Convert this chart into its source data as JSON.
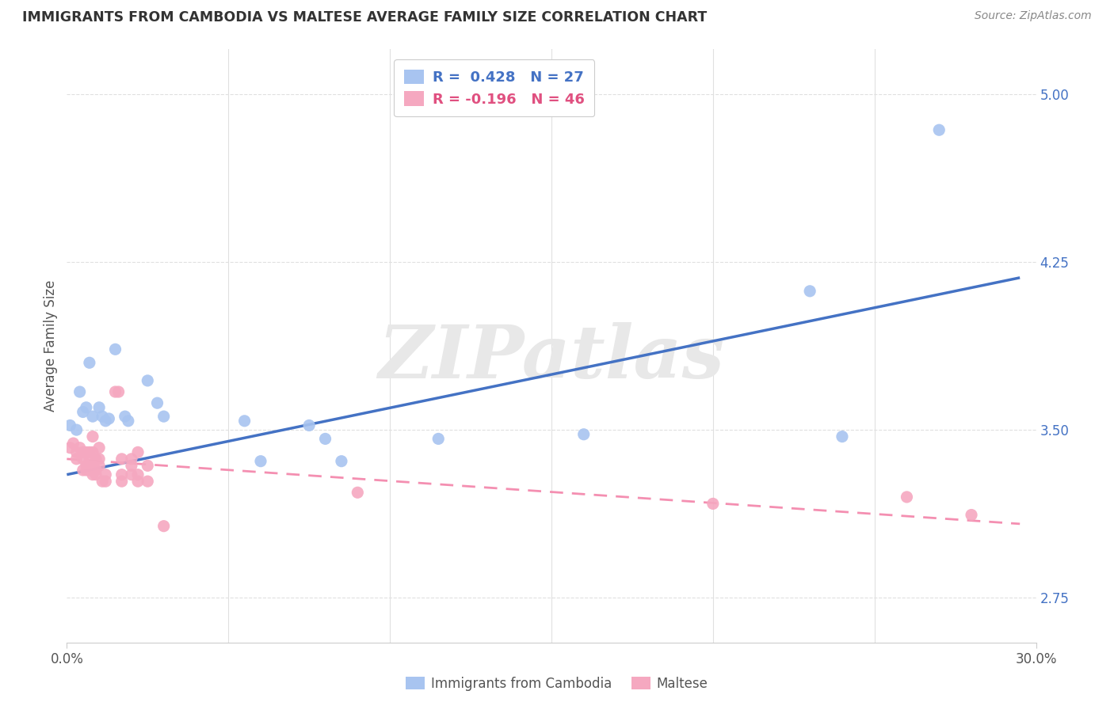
{
  "title": "IMMIGRANTS FROM CAMBODIA VS MALTESE AVERAGE FAMILY SIZE CORRELATION CHART",
  "source": "Source: ZipAtlas.com",
  "ylabel": "Average Family Size",
  "yticks": [
    2.75,
    3.5,
    4.25,
    5.0
  ],
  "ytick_labels": [
    "2.75",
    "3.50",
    "4.25",
    "5.00"
  ],
  "xlim": [
    0.0,
    0.3
  ],
  "ylim": [
    2.55,
    5.2
  ],
  "watermark": "ZIPatlas",
  "legend_cambodia_r": "R =  0.428",
  "legend_cambodia_n": "N = 27",
  "legend_maltese_r": "R = -0.196",
  "legend_maltese_n": "N = 46",
  "cambodia_color": "#a8c4f0",
  "maltese_color": "#f5a8c0",
  "cambodia_line_color": "#4472c4",
  "maltese_line_color": "#f48fb1",
  "background_color": "#ffffff",
  "cambodia_points": [
    [
      0.001,
      3.52
    ],
    [
      0.003,
      3.5
    ],
    [
      0.004,
      3.67
    ],
    [
      0.005,
      3.58
    ],
    [
      0.006,
      3.6
    ],
    [
      0.007,
      3.8
    ],
    [
      0.008,
      3.56
    ],
    [
      0.01,
      3.6
    ],
    [
      0.011,
      3.56
    ],
    [
      0.012,
      3.54
    ],
    [
      0.013,
      3.55
    ],
    [
      0.015,
      3.86
    ],
    [
      0.018,
      3.56
    ],
    [
      0.019,
      3.54
    ],
    [
      0.025,
      3.72
    ],
    [
      0.028,
      3.62
    ],
    [
      0.03,
      3.56
    ],
    [
      0.055,
      3.54
    ],
    [
      0.06,
      3.36
    ],
    [
      0.075,
      3.52
    ],
    [
      0.08,
      3.46
    ],
    [
      0.085,
      3.36
    ],
    [
      0.115,
      3.46
    ],
    [
      0.16,
      3.48
    ],
    [
      0.23,
      4.12
    ],
    [
      0.27,
      4.84
    ],
    [
      0.24,
      3.47
    ]
  ],
  "maltese_points": [
    [
      0.001,
      3.42
    ],
    [
      0.002,
      3.44
    ],
    [
      0.003,
      3.4
    ],
    [
      0.003,
      3.37
    ],
    [
      0.004,
      3.42
    ],
    [
      0.005,
      3.4
    ],
    [
      0.005,
      3.37
    ],
    [
      0.005,
      3.32
    ],
    [
      0.006,
      3.4
    ],
    [
      0.006,
      3.34
    ],
    [
      0.006,
      3.32
    ],
    [
      0.007,
      3.4
    ],
    [
      0.007,
      3.37
    ],
    [
      0.007,
      3.34
    ],
    [
      0.007,
      3.32
    ],
    [
      0.008,
      3.47
    ],
    [
      0.008,
      3.4
    ],
    [
      0.008,
      3.34
    ],
    [
      0.008,
      3.3
    ],
    [
      0.009,
      3.37
    ],
    [
      0.009,
      3.32
    ],
    [
      0.009,
      3.3
    ],
    [
      0.01,
      3.42
    ],
    [
      0.01,
      3.37
    ],
    [
      0.01,
      3.34
    ],
    [
      0.011,
      3.27
    ],
    [
      0.012,
      3.3
    ],
    [
      0.012,
      3.27
    ],
    [
      0.015,
      3.67
    ],
    [
      0.016,
      3.67
    ],
    [
      0.017,
      3.37
    ],
    [
      0.017,
      3.3
    ],
    [
      0.017,
      3.27
    ],
    [
      0.02,
      3.37
    ],
    [
      0.02,
      3.34
    ],
    [
      0.02,
      3.3
    ],
    [
      0.022,
      3.4
    ],
    [
      0.022,
      3.3
    ],
    [
      0.022,
      3.27
    ],
    [
      0.025,
      3.34
    ],
    [
      0.025,
      3.27
    ],
    [
      0.03,
      3.07
    ],
    [
      0.09,
      3.22
    ],
    [
      0.2,
      3.17
    ],
    [
      0.26,
      3.2
    ],
    [
      0.28,
      3.12
    ]
  ],
  "cambodia_trendline": [
    0.0,
    0.295,
    3.3,
    4.18
  ],
  "maltese_trendline": [
    0.0,
    0.295,
    3.37,
    3.08
  ]
}
